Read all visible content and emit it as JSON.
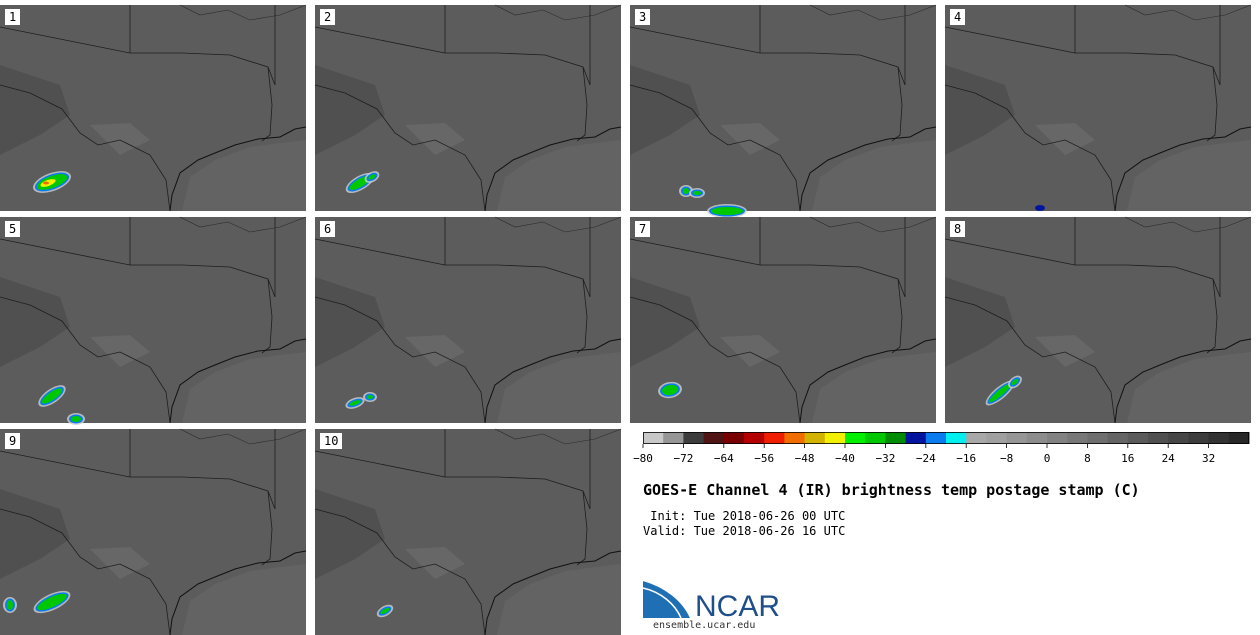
{
  "panels": [
    {
      "label": "1",
      "storm": "strong"
    },
    {
      "label": "2",
      "storm": "medium"
    },
    {
      "label": "3",
      "storm": "south"
    },
    {
      "label": "4",
      "storm": "blue"
    },
    {
      "label": "5",
      "storm": "medium-low"
    },
    {
      "label": "6",
      "storm": "weak"
    },
    {
      "label": "7",
      "storm": "left"
    },
    {
      "label": "8",
      "storm": "line"
    },
    {
      "label": "9",
      "storm": "edge"
    },
    {
      "label": "10",
      "storm": "tiny"
    }
  ],
  "colorbar": {
    "colors": [
      "#c8c8c8",
      "#969696",
      "#3c3c3c",
      "#501414",
      "#780000",
      "#b40000",
      "#f01e00",
      "#f06e00",
      "#d2b400",
      "#f0f000",
      "#00f000",
      "#00c800",
      "#008c00",
      "#0014a0",
      "#0a7cf0",
      "#00f0f0",
      "#a8a8a8",
      "#a0a0a0",
      "#969696",
      "#8c8c8c",
      "#828282",
      "#787878",
      "#6e6e6e",
      "#646464",
      "#5a5a5a",
      "#505050",
      "#464646",
      "#3c3c3c",
      "#323232",
      "#282828"
    ],
    "min": -80,
    "max": 40,
    "ticks": [
      "−80",
      "−72",
      "−64",
      "−56",
      "−48",
      "−40",
      "−32",
      "−24",
      "−16",
      "−8",
      "0",
      "8",
      "16",
      "24",
      "32"
    ]
  },
  "title": "GOES-E Channel 4 (IR) brightness temp postage stamp (C)",
  "init": " Init: Tue 2018-06-26 00 UTC",
  "valid": "Valid: Tue 2018-06-26 16 UTC",
  "logo_text": "NCAR",
  "logo_url": "ensemble.ucar.edu"
}
